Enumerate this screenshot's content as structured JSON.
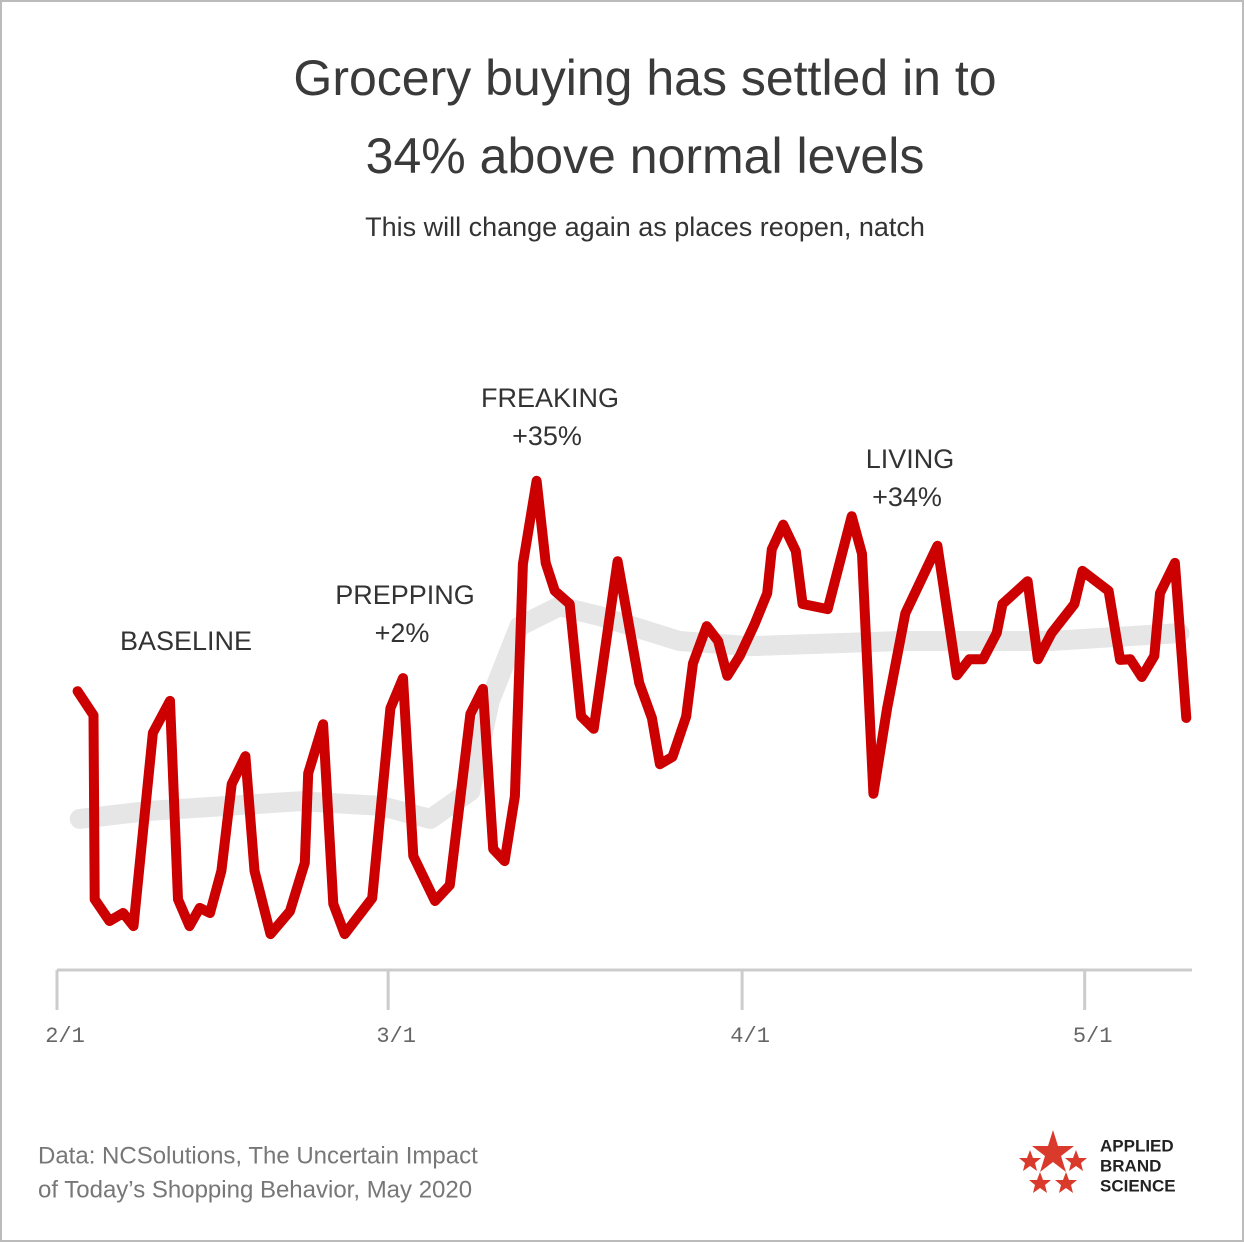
{
  "chart_data": {
    "type": "line",
    "title": [
      "Grocery buying has settled in to",
      "34% above normal levels"
    ],
    "subtitle": "This will change again as places reopen, natch",
    "xlim": [
      0,
      99.4
    ],
    "ylim": [
      -27,
      60
    ],
    "xticks": [
      {
        "value": 0,
        "label": "2/1"
      },
      {
        "value": 29,
        "label": "3/1"
      },
      {
        "value": 60,
        "label": "4/1"
      },
      {
        "value": 90,
        "label": "5/1"
      }
    ],
    "series": [
      {
        "color": "#e6e6e6",
        "x": [
          2.0,
          8.1,
          21.3,
          28.3,
          32.7,
          36.2,
          37.9,
          40.5,
          44.0,
          47.5,
          54.5,
          60.7,
          73.8,
          87.0,
          98.3
        ],
        "values": [
          -0.5,
          0.9,
          2.6,
          1.8,
          -0.5,
          4.4,
          20.2,
          33.3,
          36.8,
          35.1,
          30.7,
          29.8,
          30.7,
          30.7,
          32.1
        ]
      },
      {
        "color": "#cc0000",
        "x": [
          1.8,
          3.2,
          3.3,
          4.6,
          5.8,
          6.7,
          8.4,
          9.9,
          10.6,
          11.6,
          12.5,
          13.4,
          14.4,
          15.3,
          16.5,
          17.3,
          18.7,
          20.4,
          21.7,
          22.0,
          23.3,
          24.2,
          25.2,
          27.6,
          29.2,
          30.3,
          31.2,
          33.1,
          34.4,
          36.2,
          37.3,
          38.2,
          39.2,
          40.1,
          40.8,
          42.0,
          42.8,
          43.6,
          44.9,
          45.9,
          47.0,
          49.1,
          51.0,
          52.1,
          52.8,
          53.9,
          55.1,
          55.7,
          56.9,
          57.9,
          58.7,
          59.8,
          61.1,
          62.2,
          62.6,
          63.6,
          64.7,
          65.3,
          67.5,
          69.6,
          70.5,
          71.5,
          72.7,
          74.3,
          77.1,
          78.8,
          79.9,
          81.1,
          82.3,
          82.8,
          85.0,
          85.9,
          87.1,
          89.1,
          89.8,
          92.1,
          93.1,
          94.0,
          95.0,
          96.1,
          96.6,
          97.9,
          98.9
        ],
        "values": [
          21.9,
          17.7,
          -14.6,
          -18.4,
          -17.0,
          -19.3,
          14.6,
          20.2,
          -14.6,
          -19.3,
          -16.1,
          -17.0,
          -9.6,
          5.6,
          10.5,
          -9.6,
          -20.7,
          -16.7,
          -8.2,
          7.5,
          16.1,
          -15.4,
          -20.7,
          -14.4,
          18.9,
          24.2,
          -7.0,
          -14.9,
          -12.1,
          17.9,
          22.3,
          -5.8,
          -7.9,
          3.5,
          44.2,
          58.8,
          44.4,
          39.5,
          37.2,
          17.5,
          15.3,
          44.7,
          23.3,
          17.2,
          9.1,
          10.4,
          17.5,
          26.8,
          33.3,
          30.7,
          24.6,
          28.1,
          33.7,
          39.1,
          46.8,
          51.1,
          46.5,
          37.2,
          36.3,
          52.6,
          46.0,
          3.9,
          18.9,
          35.6,
          47.4,
          24.7,
          27.5,
          27.5,
          32.1,
          37.2,
          41.2,
          27.5,
          32.1,
          37.2,
          43.0,
          39.5,
          27.4,
          27.5,
          24.4,
          28.1,
          39.1,
          44.4,
          17.2
        ]
      }
    ],
    "annotations": [
      [
        "BASELINE"
      ],
      [
        "PREPPING",
        "+2%"
      ],
      [
        "FREAKING",
        "+35%"
      ],
      [
        "LIVING",
        "+34%"
      ]
    ],
    "source": [
      "Data: NCSolutions, The Uncertain Impact",
      "of Today’s Shopping Behavior, May 2020"
    ],
    "logo": [
      "APPLIED",
      "BRAND",
      "SCIENCE"
    ]
  }
}
